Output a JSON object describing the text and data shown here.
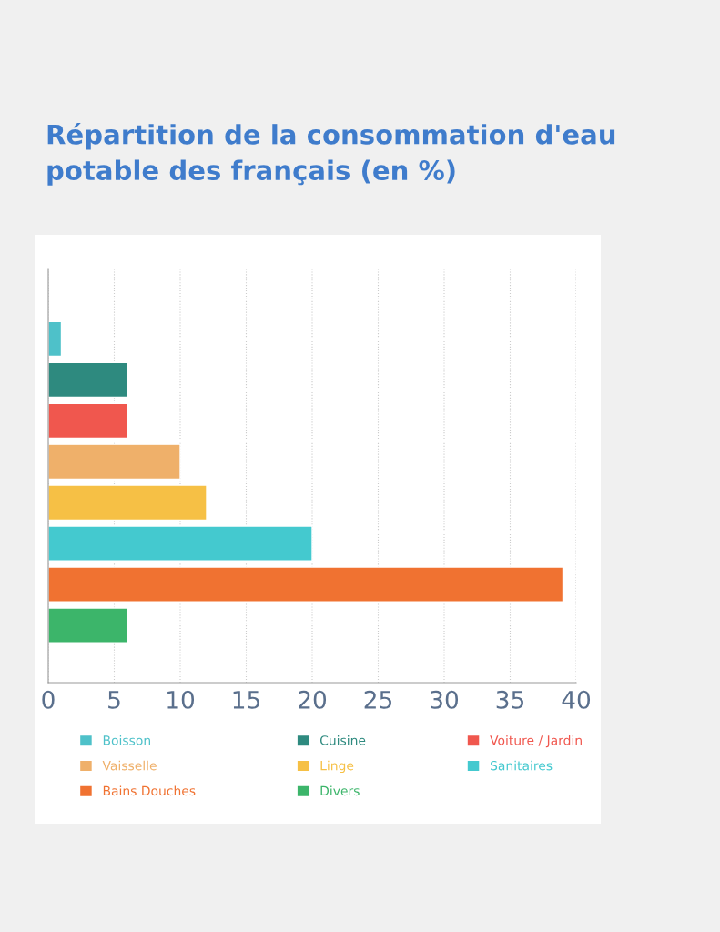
{
  "chart_data": {
    "type": "bar",
    "orientation": "horizontal",
    "stacked": true,
    "title": "Répartition de la consommation d'eau potable des français (en %)",
    "categories": [
      null,
      null,
      null,
      null,
      null,
      null,
      null,
      null
    ],
    "series": [
      {
        "name": "Boisson",
        "color": "#4ec1c9",
        "values": [
          1,
          null,
          null,
          null,
          null,
          null,
          null,
          null
        ]
      },
      {
        "name": "Cuisine",
        "color": "#2e8a7f",
        "values": [
          null,
          6,
          null,
          null,
          null,
          null,
          null,
          null
        ]
      },
      {
        "name": "Voiture / Jardin",
        "color": "#f0574e",
        "values": [
          null,
          null,
          6,
          null,
          null,
          null,
          null,
          null
        ]
      },
      {
        "name": "Vaisselle",
        "color": "#efb06a",
        "values": [
          null,
          null,
          null,
          10,
          null,
          null,
          null,
          null
        ]
      },
      {
        "name": "Linge",
        "color": "#f6c045",
        "values": [
          null,
          null,
          null,
          null,
          12,
          null,
          null,
          null
        ]
      },
      {
        "name": "Sanitaires",
        "color": "#44c9cf",
        "values": [
          null,
          null,
          null,
          null,
          null,
          20,
          null,
          null
        ]
      },
      {
        "name": "Bains Douches",
        "color": "#f07231",
        "values": [
          null,
          null,
          null,
          null,
          null,
          null,
          39,
          null
        ]
      },
      {
        "name": "Divers",
        "color": "#3cb56a",
        "values": [
          null,
          null,
          null,
          null,
          null,
          null,
          null,
          6
        ]
      }
    ],
    "xlim": [
      0,
      40
    ],
    "xticks": [
      0,
      5,
      10,
      15,
      20,
      25,
      30,
      35,
      40
    ],
    "grid": "x",
    "legend": "bottom"
  }
}
